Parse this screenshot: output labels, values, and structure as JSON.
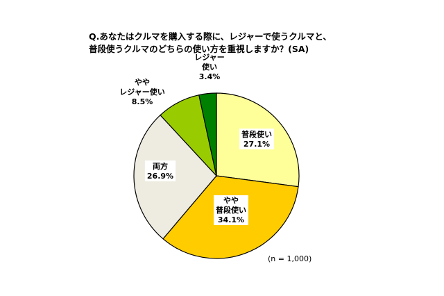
{
  "chart_data": {
    "type": "pie",
    "title_lines": [
      "Q.あなたはクルマを購入する際に、レジャーで使うクルマと、",
      "普段使うクルマのどちらの使い方を重視しますか？(SA)"
    ],
    "slices": [
      {
        "label": [
          "普段使い"
        ],
        "value": 27.1,
        "value_text": "27.1%",
        "color": "#ffff99"
      },
      {
        "label": [
          "やや",
          "普段使い"
        ],
        "value": 34.1,
        "value_text": "34.1%",
        "color": "#ffcc00"
      },
      {
        "label": [
          "両方"
        ],
        "value": 26.9,
        "value_text": "26.9%",
        "color": "#eeece1"
      },
      {
        "label": [
          "やや",
          "レジャー使い"
        ],
        "value": 8.5,
        "value_text": "8.5%",
        "color": "#99cc00"
      },
      {
        "label": [
          "レジャー",
          "使い"
        ],
        "value": 3.4,
        "value_text": "3.4%",
        "color": "#008000"
      }
    ],
    "note": "(n = 1,000)",
    "start_angle_deg": 0,
    "direction": "clockwise"
  }
}
